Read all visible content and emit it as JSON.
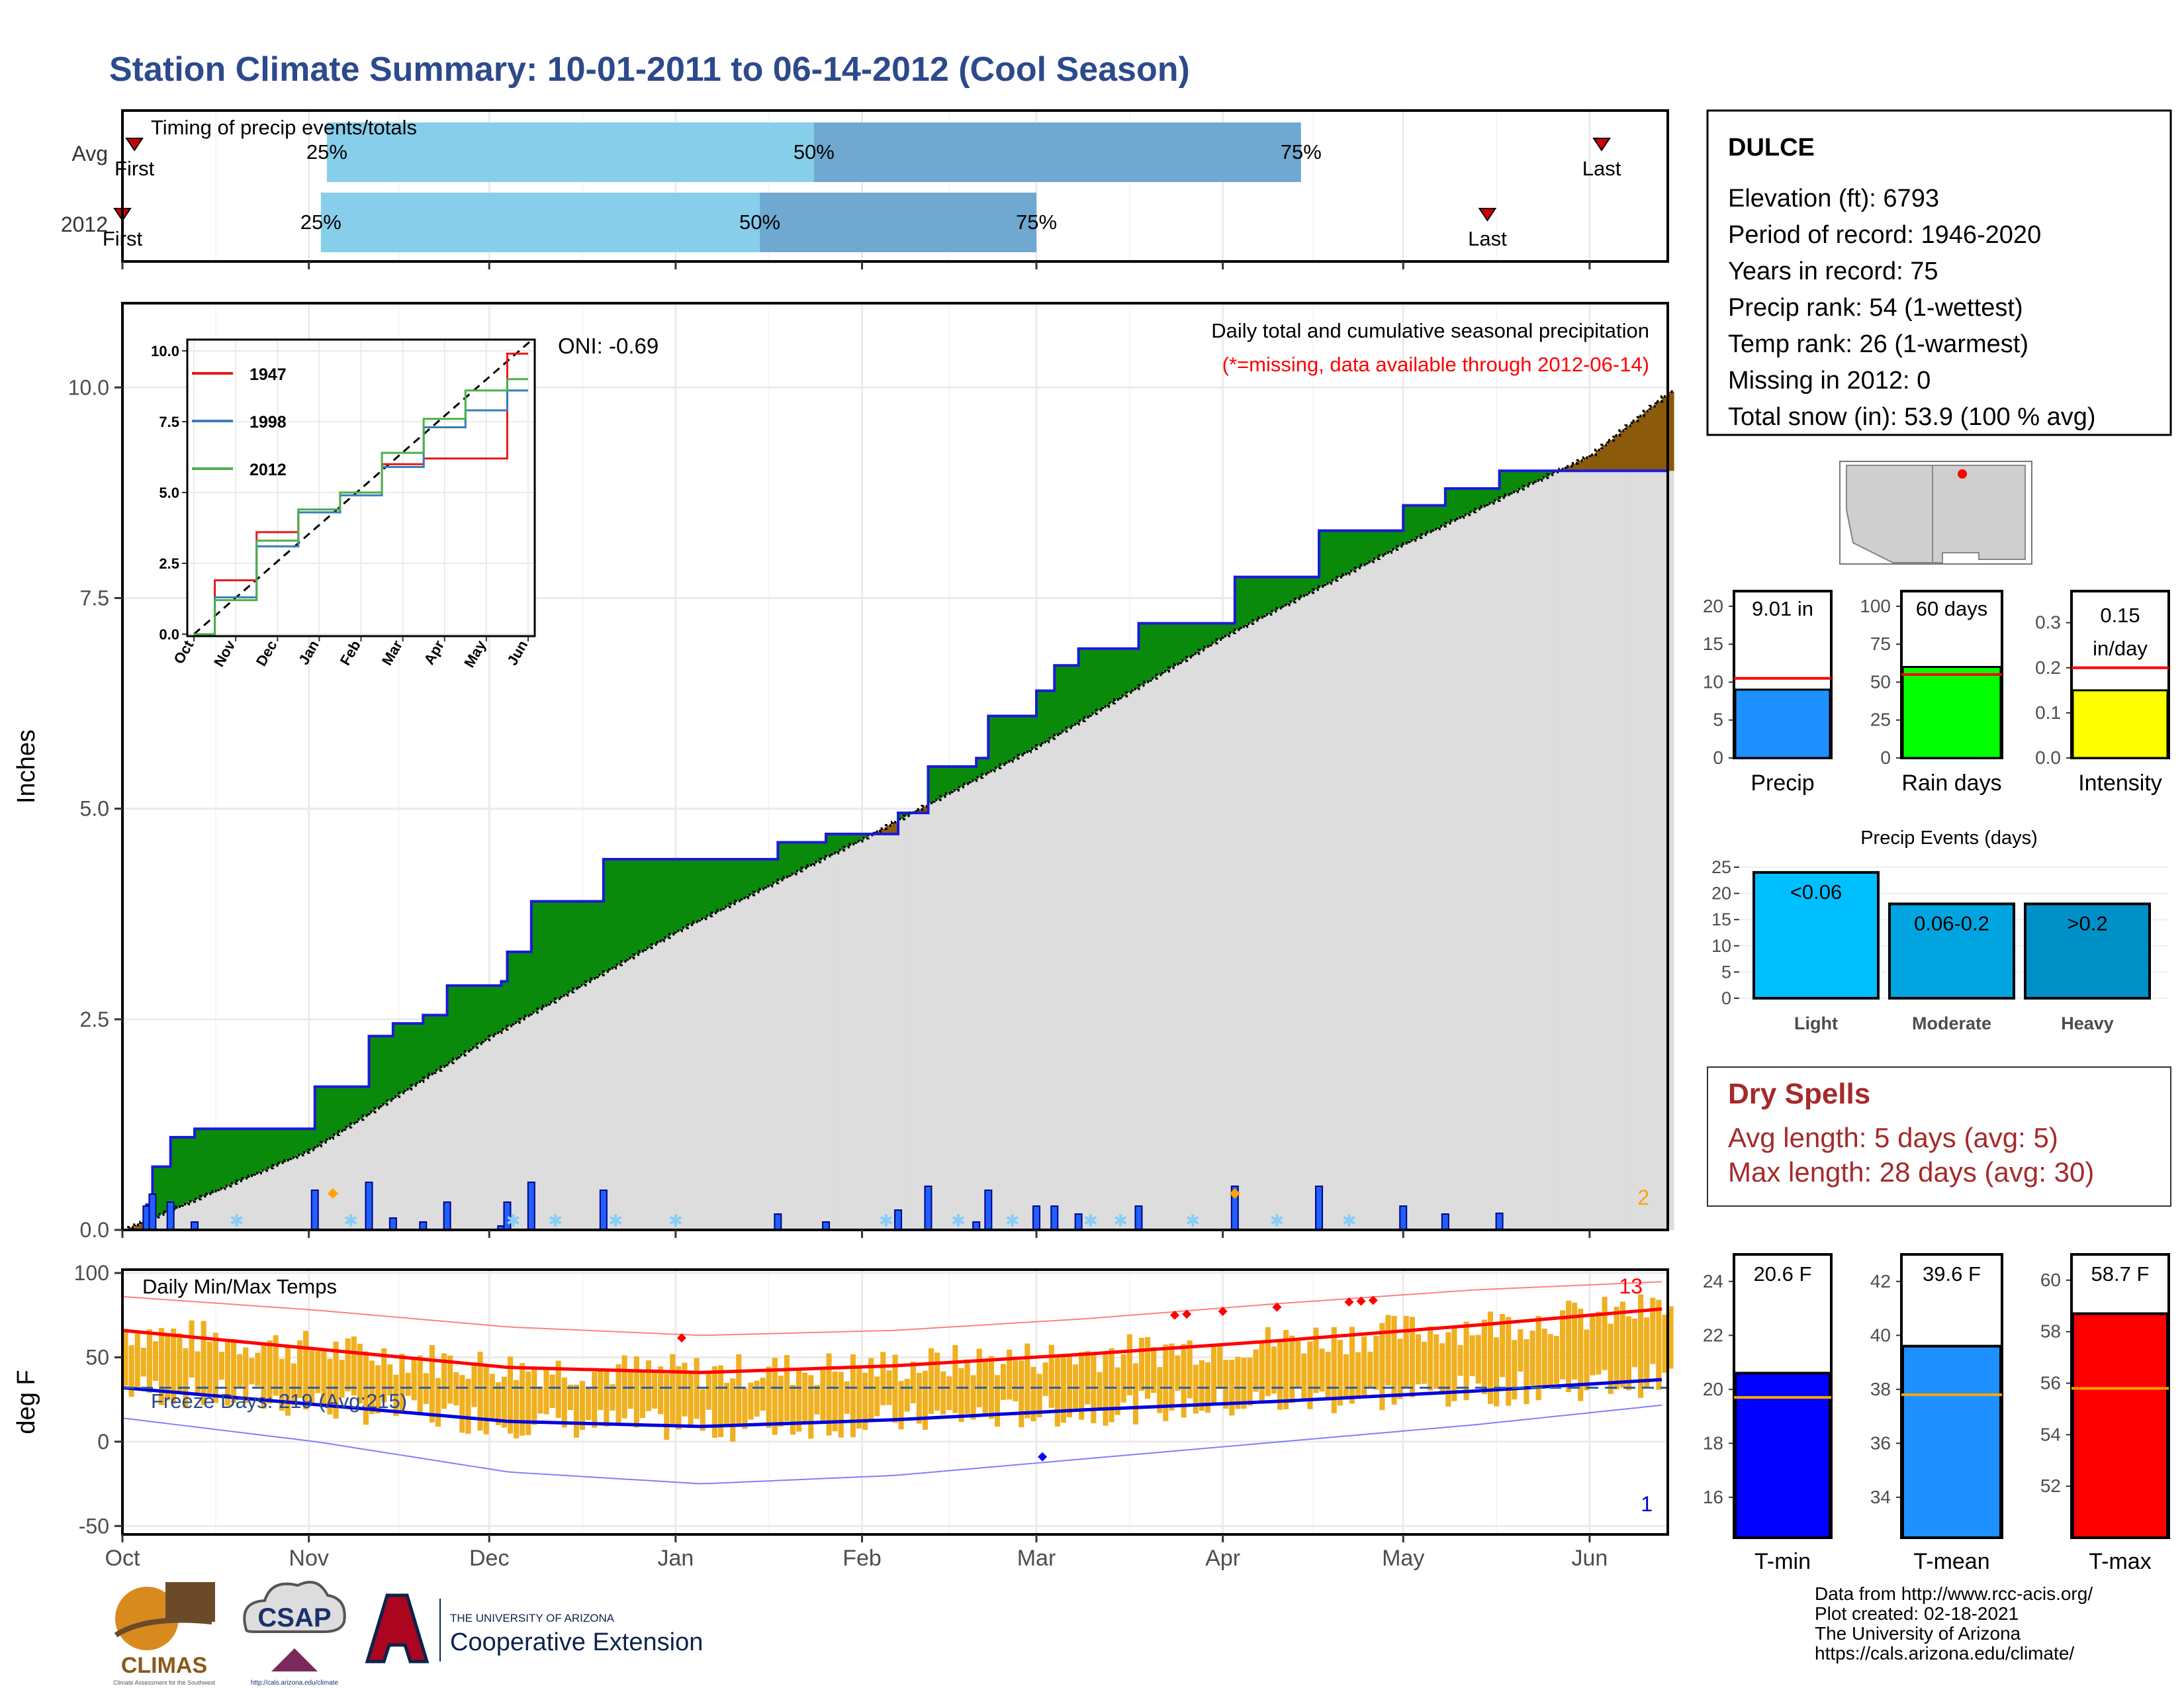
{
  "title": "Station Climate Summary: 10-01-2011 to 06-14-2012 (Cool Season)",
  "months": [
    "Oct",
    "Nov",
    "Dec",
    "Jan",
    "Feb",
    "Mar",
    "Apr",
    "May",
    "Jun"
  ],
  "timing": {
    "label": "Timing of precip events/totals",
    "rows": [
      {
        "name": "Avg",
        "first": "Oct 3",
        "last": "Jun 3",
        "p25": "Nov 4",
        "p50": "Jan 24",
        "p75": "Apr 14",
        "first_label": "First",
        "last_label": "Last",
        "p25_label": "25%",
        "p50_label": "50%",
        "p75_label": "75%"
      },
      {
        "name": "2012",
        "first": "Oct 1",
        "last": "May 15",
        "p25": "Nov 3",
        "p50": "Jan 15",
        "p75": "Mar 1",
        "first_label": "First",
        "last_label": "Last",
        "p25_label": "25%",
        "p50_label": "50%",
        "p75_label": "75%"
      }
    ],
    "colors": {
      "light": "#87ceeb",
      "dark": "#6fa8d0"
    }
  },
  "precip": {
    "ylabel": "Inches",
    "yticks": [
      "0.0",
      "2.5",
      "5.0",
      "7.5",
      "10.0"
    ],
    "ylim": [
      0,
      11
    ],
    "header": "Daily total and cumulative seasonal precipitation",
    "missing_note": "(*=missing, data available through 2012-06-14)",
    "oni": "ONI: -0.69",
    "corner_count": "2",
    "colors": {
      "above": "#0a8a0a",
      "below": "#8b5a0a",
      "normal": "#dddddd",
      "obs": "#1a1adc",
      "daily": "#2060ff",
      "snow": "#87cefa"
    }
  },
  "inset": {
    "yticks": [
      "0.0",
      "2.5",
      "5.0",
      "7.5",
      "10.0"
    ],
    "xticks": [
      "Oct",
      "Nov",
      "Dec",
      "Jan",
      "Feb",
      "Mar",
      "Apr",
      "May",
      "Jun"
    ],
    "series": [
      {
        "name": "1947",
        "color": "#e41a1c"
      },
      {
        "name": "1998",
        "color": "#377eb8"
      },
      {
        "name": "2012",
        "color": "#4daf4a"
      }
    ]
  },
  "temps": {
    "ylabel": "deg F",
    "label": "Daily Min/Max Temps",
    "yticks": [
      "-50",
      "0",
      "50",
      "100"
    ],
    "ylim": [
      -55,
      102
    ],
    "freeze_label": "Freeze Days: 219 (Avg:215)",
    "record_high_count": "13",
    "record_low_count": "1",
    "colors": {
      "bar": "#f0b020",
      "max": "#ff0000",
      "min": "#0000dd"
    }
  },
  "station": {
    "name": "DULCE",
    "lines": [
      "Elevation (ft): 6793",
      "Period of record: 1946-2020",
      "Years in record: 75",
      "Precip rank: 54 (1-wettest)",
      "Temp rank: 26 (1-warmest)",
      "Missing in 2012: 0",
      "Total snow (in): 53.9 (100 % avg)"
    ]
  },
  "small_bars": [
    {
      "label": "Precip",
      "value_text": "9.01 in",
      "value": 9.01,
      "avg": 10.5,
      "max": 22,
      "ticks": [
        "0",
        "5",
        "10",
        "15",
        "20"
      ],
      "color": "#1e90ff"
    },
    {
      "label": "Rain days",
      "value_text": "60 days",
      "value": 60,
      "avg": 55,
      "max": 110,
      "ticks": [
        "0",
        "25",
        "50",
        "75",
        "100"
      ],
      "color": "#00ff00"
    },
    {
      "label": "Intensity",
      "value_text_1": "0.15",
      "value_text_2": "in/day",
      "value": 0.15,
      "avg": 0.2,
      "max": 0.37,
      "ticks": [
        "0.0",
        "0.1",
        "0.2",
        "0.3"
      ],
      "color": "#ffff00"
    }
  ],
  "events": {
    "title": "Precip Events (days)",
    "ticks": [
      "0",
      "5",
      "10",
      "15",
      "20",
      "25"
    ],
    "max": 25,
    "bars": [
      {
        "category": "Light",
        "label": "<0.06",
        "value": 24,
        "color": "#00bfff"
      },
      {
        "category": "Moderate",
        "label": "0.06-0.2",
        "value": 18,
        "color": "#00a5e0"
      },
      {
        "category": "Heavy",
        "label": ">0.2",
        "value": 18,
        "color": "#0090c8"
      }
    ]
  },
  "dry_spells": {
    "title": "Dry Spells",
    "avg": "Avg length: 5 days (avg: 5)",
    "max": "Max length: 28 days (avg: 30)"
  },
  "temp_bars": [
    {
      "label": "T-min",
      "value_text": "20.6 F",
      "value": 20.6,
      "avg": 19.7,
      "lo": 14.5,
      "hi": 25,
      "ticks": [
        "16",
        "18",
        "20",
        "22",
        "24"
      ],
      "color": "#0000ff"
    },
    {
      "label": "T-mean",
      "value_text": "39.6 F",
      "value": 39.6,
      "avg": 37.8,
      "lo": 32.5,
      "hi": 43,
      "ticks": [
        "34",
        "36",
        "38",
        "40",
        "42"
      ],
      "color": "#1e90ff"
    },
    {
      "label": "T-max",
      "value_text": "58.7 F",
      "value": 58.7,
      "avg": 55.8,
      "lo": 50,
      "hi": 61,
      "ticks": [
        "52",
        "54",
        "56",
        "58",
        "60"
      ],
      "color": "#ff0000"
    }
  ],
  "footer": {
    "lines": [
      "Data from http://www.rcc-acis.org/",
      "Plot created: 02-18-2021",
      "The University of Arizona",
      "https://cals.arizona.edu/climate/"
    ],
    "logos": {
      "climas": "CLIMAS",
      "climas_sub": "Climate Assessment for the Southwest",
      "csap": "CSAP",
      "csap_url": "http://cals.arizona.edu/climate",
      "ua_line1": "THE UNIVERSITY OF ARIZONA",
      "ua_line2": "Cooperative Extension"
    }
  },
  "chart_data": [
    {
      "type": "bar",
      "title": "Timing of precip events/totals",
      "categories": [
        "Avg",
        "2012"
      ],
      "series": [
        {
          "name": "First",
          "values": [
            "Oct 3",
            "Oct 1"
          ]
        },
        {
          "name": "25%",
          "values": [
            "Nov 4",
            "Nov 3"
          ]
        },
        {
          "name": "50%",
          "values": [
            "Jan 24",
            "Jan 15"
          ]
        },
        {
          "name": "75%",
          "values": [
            "Apr 14",
            "Mar 1"
          ]
        },
        {
          "name": "Last",
          "values": [
            "Jun 3",
            "May 15"
          ]
        }
      ]
    },
    {
      "type": "area",
      "title": "Daily total and cumulative seasonal precipitation",
      "ylabel": "Inches",
      "ylim": [
        0,
        11
      ],
      "series": [
        {
          "name": "Observed cumulative",
          "points": [
            [
              "2011-10-01",
              0.0
            ],
            [
              "2011-10-05",
              0.3
            ],
            [
              "2011-10-06",
              0.75
            ],
            [
              "2011-10-09",
              1.1
            ],
            [
              "2011-10-13",
              1.2
            ],
            [
              "2011-11-01",
              1.2
            ],
            [
              "2011-11-02",
              1.7
            ],
            [
              "2011-11-05",
              1.7
            ],
            [
              "2011-11-10",
              1.7
            ],
            [
              "2011-11-11",
              2.3
            ],
            [
              "2011-11-15",
              2.45
            ],
            [
              "2011-11-20",
              2.55
            ],
            [
              "2011-11-24",
              2.9
            ],
            [
              "2011-12-03",
              2.95
            ],
            [
              "2011-12-04",
              3.3
            ],
            [
              "2011-12-08",
              3.9
            ],
            [
              "2011-12-20",
              4.4
            ],
            [
              "2012-01-15",
              4.4
            ],
            [
              "2012-01-18",
              4.6
            ],
            [
              "2012-01-26",
              4.7
            ],
            [
              "2012-02-07",
              4.95
            ],
            [
              "2012-02-12",
              5.5
            ],
            [
              "2012-02-20",
              5.6
            ],
            [
              "2012-02-22",
              6.1
            ],
            [
              "2012-03-01",
              6.4
            ],
            [
              "2012-03-04",
              6.7
            ],
            [
              "2012-03-08",
              6.9
            ],
            [
              "2012-03-18",
              7.2
            ],
            [
              "2012-04-01",
              7.2
            ],
            [
              "2012-04-03",
              7.75
            ],
            [
              "2012-04-15",
              7.75
            ],
            [
              "2012-04-17",
              8.3
            ],
            [
              "2012-05-01",
              8.6
            ],
            [
              "2012-05-08",
              8.8
            ],
            [
              "2012-05-17",
              9.01
            ],
            [
              "2012-06-14",
              9.01
            ]
          ]
        },
        {
          "name": "Normal cumulative",
          "points": [
            [
              "2011-10-01",
              0.0
            ],
            [
              "2011-11-01",
              0.95
            ],
            [
              "2011-12-01",
              2.3
            ],
            [
              "2012-01-01",
              3.55
            ],
            [
              "2012-02-01",
              4.65
            ],
            [
              "2012-03-01",
              5.75
            ],
            [
              "2012-04-01",
              7.05
            ],
            [
              "2012-05-01",
              8.15
            ],
            [
              "2012-06-01",
              9.2
            ],
            [
              "2012-06-14",
              9.95
            ]
          ]
        }
      ]
    },
    {
      "type": "line",
      "title": "",
      "x": [
        "Oct",
        "Nov",
        "Dec",
        "Jan",
        "Feb",
        "Mar",
        "Apr",
        "May",
        "Jun"
      ],
      "ylim": [
        0,
        10
      ],
      "series": [
        {
          "name": "1947",
          "values": [
            0,
            1.9,
            3.6,
            4.3,
            5.0,
            6.0,
            6.2,
            6.2,
            9.9
          ]
        },
        {
          "name": "1998",
          "values": [
            0,
            1.3,
            3.1,
            4.3,
            4.9,
            5.9,
            7.3,
            7.9,
            8.6
          ]
        },
        {
          "name": "2012",
          "values": [
            0,
            1.2,
            3.3,
            4.4,
            5.0,
            6.4,
            7.6,
            8.6,
            9.0
          ]
        }
      ]
    },
    {
      "type": "line",
      "title": "Daily Min/Max Temps",
      "ylabel": "deg F",
      "ylim": [
        -55,
        102
      ],
      "x": [
        "Oct",
        "Nov",
        "Dec",
        "Jan",
        "Feb",
        "Mar",
        "Apr",
        "May",
        "Jun"
      ],
      "series": [
        {
          "name": "Normal max",
          "values": [
            66,
            55,
            44,
            41,
            45,
            52,
            60,
            69,
            79
          ]
        },
        {
          "name": "Normal min",
          "values": [
            32,
            22,
            12,
            9,
            13,
            19,
            24,
            30,
            37
          ]
        },
        {
          "name": "Record max",
          "values": [
            86,
            78,
            68,
            63,
            66,
            73,
            82,
            90,
            95
          ]
        },
        {
          "name": "Record min",
          "values": [
            14,
            0,
            -18,
            -25,
            -20,
            -10,
            0,
            10,
            22
          ]
        }
      ]
    },
    {
      "type": "bar",
      "title": "",
      "categories": [
        "Precip",
        "Rain days",
        "Intensity"
      ],
      "series": [
        {
          "name": "2012",
          "values": [
            9.01,
            60,
            0.15
          ]
        },
        {
          "name": "avg",
          "values": [
            10.5,
            55,
            0.2
          ]
        }
      ]
    },
    {
      "type": "bar",
      "title": "Precip Events (days)",
      "categories": [
        "Light",
        "Moderate",
        "Heavy"
      ],
      "values": [
        24,
        18,
        18
      ]
    },
    {
      "type": "bar",
      "title": "",
      "categories": [
        "T-min",
        "T-mean",
        "T-max"
      ],
      "series": [
        {
          "name": "2012",
          "values": [
            20.6,
            39.6,
            58.7
          ]
        },
        {
          "name": "avg",
          "values": [
            19.7,
            37.8,
            55.8
          ]
        }
      ]
    }
  ]
}
